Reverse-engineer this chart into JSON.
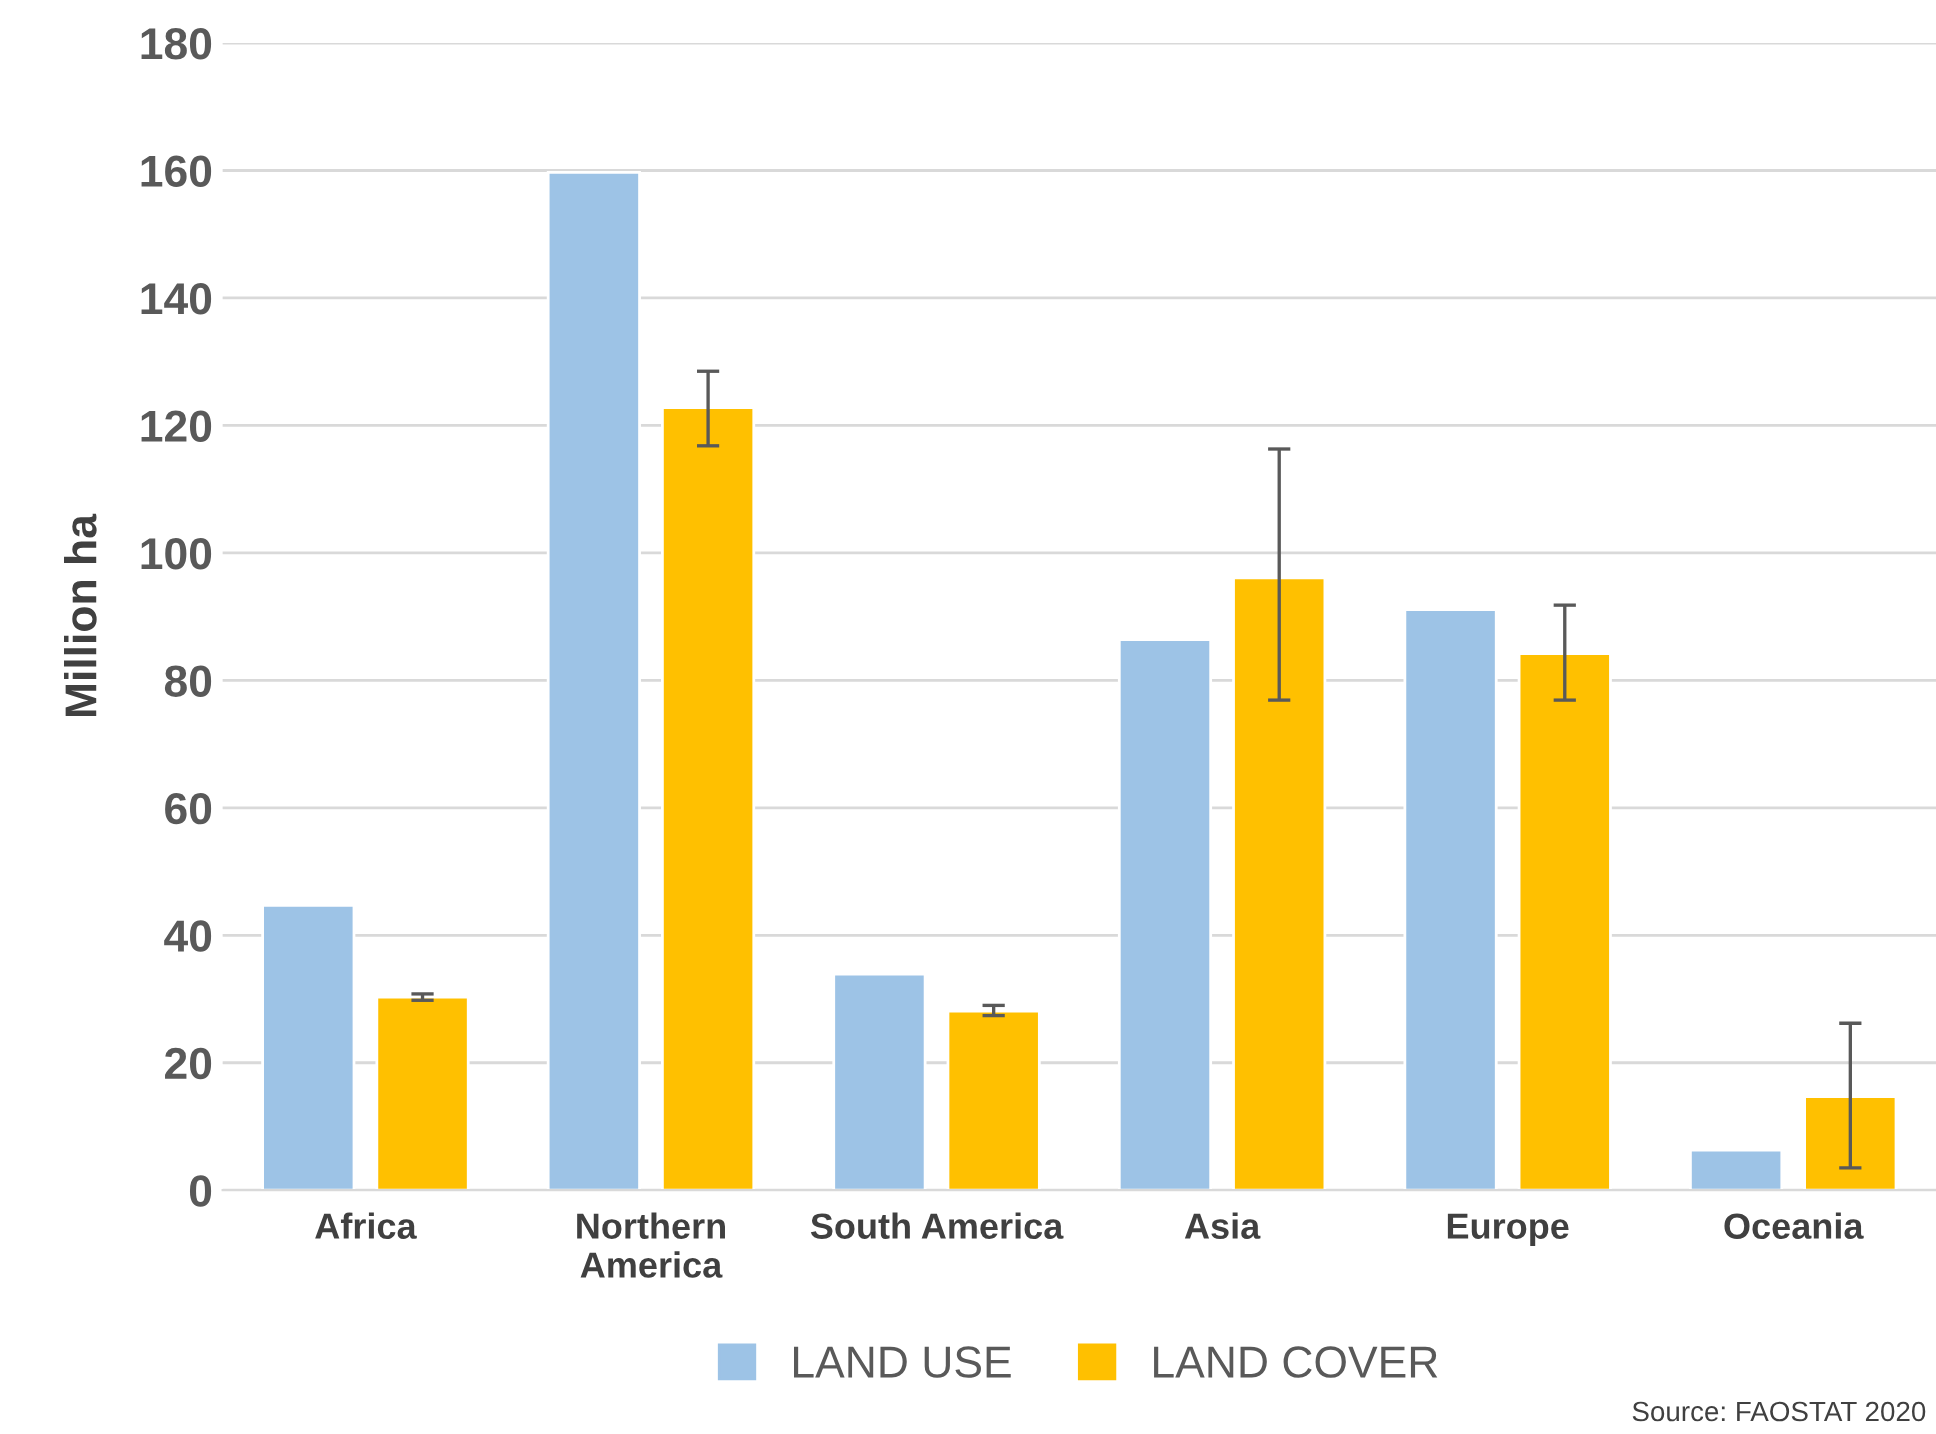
{
  "chart_data": {
    "type": "bar",
    "ylabel": "Million ha",
    "categories": [
      "Africa",
      "Northern\nAmerica",
      "South America",
      "Asia",
      "Europe",
      "Oceania"
    ],
    "series": [
      {
        "name": "LAND USE",
        "color": "#9dc3e6",
        "values": [
          44.7,
          159.7,
          33.9,
          86.4,
          91.1,
          6.3
        ]
      },
      {
        "name": "LAND COVER",
        "color": "#ffc000",
        "values": [
          30.3,
          122.8,
          28.1,
          96.1,
          84.2,
          14.7
        ],
        "errors": [
          [
            29.8,
            30.8
          ],
          [
            116.8,
            128.5
          ],
          [
            27.4,
            29.0
          ],
          [
            76.9,
            116.3
          ],
          [
            76.9,
            91.8
          ],
          [
            3.5,
            26.2
          ]
        ]
      }
    ],
    "ylim": [
      0,
      180
    ],
    "yticks": [
      0,
      20,
      40,
      60,
      80,
      100,
      120,
      140,
      160,
      180
    ],
    "grid": "y",
    "legend": "bottom",
    "annotations": [
      "Source: FAOSTAT 2020"
    ]
  }
}
